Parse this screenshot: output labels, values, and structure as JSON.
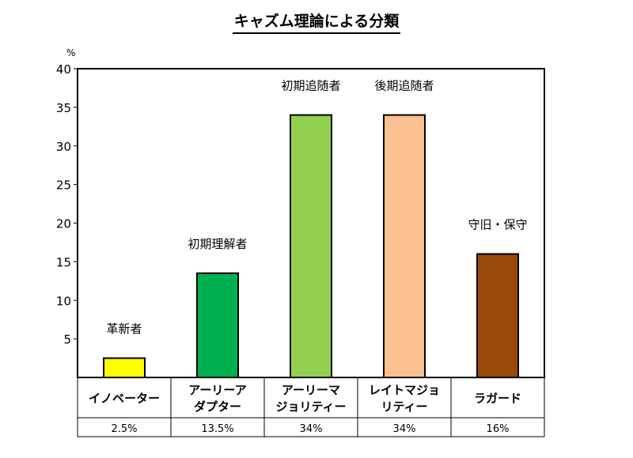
{
  "chart_data": {
    "type": "bar",
    "title": "キャズム理論による分類",
    "unit_label": "%",
    "ylim": [
      0,
      40
    ],
    "y_ticks": [
      5,
      10,
      15,
      20,
      25,
      30,
      35,
      40
    ],
    "grid": false,
    "categories": [
      {
        "name_lines": [
          "イノベーター"
        ],
        "label": "革新者",
        "percent_text": "2.5%",
        "value": 2.5,
        "color": "#ffff00"
      },
      {
        "name_lines": [
          "アーリーア",
          "ダプター"
        ],
        "label": "初期理解者",
        "percent_text": "13.5%",
        "value": 13.5,
        "color": "#00b050"
      },
      {
        "name_lines": [
          "アーリーマ",
          "ジョリティー"
        ],
        "label": "初期追随者",
        "percent_text": "34%",
        "value": 34,
        "color": "#92d050"
      },
      {
        "name_lines": [
          "レイトマジョ",
          "リティー"
        ],
        "label": "後期追随者",
        "percent_text": "34%",
        "value": 34,
        "color": "#fac090"
      },
      {
        "name_lines": [
          "ラガード"
        ],
        "label": "守旧・保守",
        "percent_text": "16%",
        "value": 16,
        "color": "#984807"
      }
    ]
  }
}
